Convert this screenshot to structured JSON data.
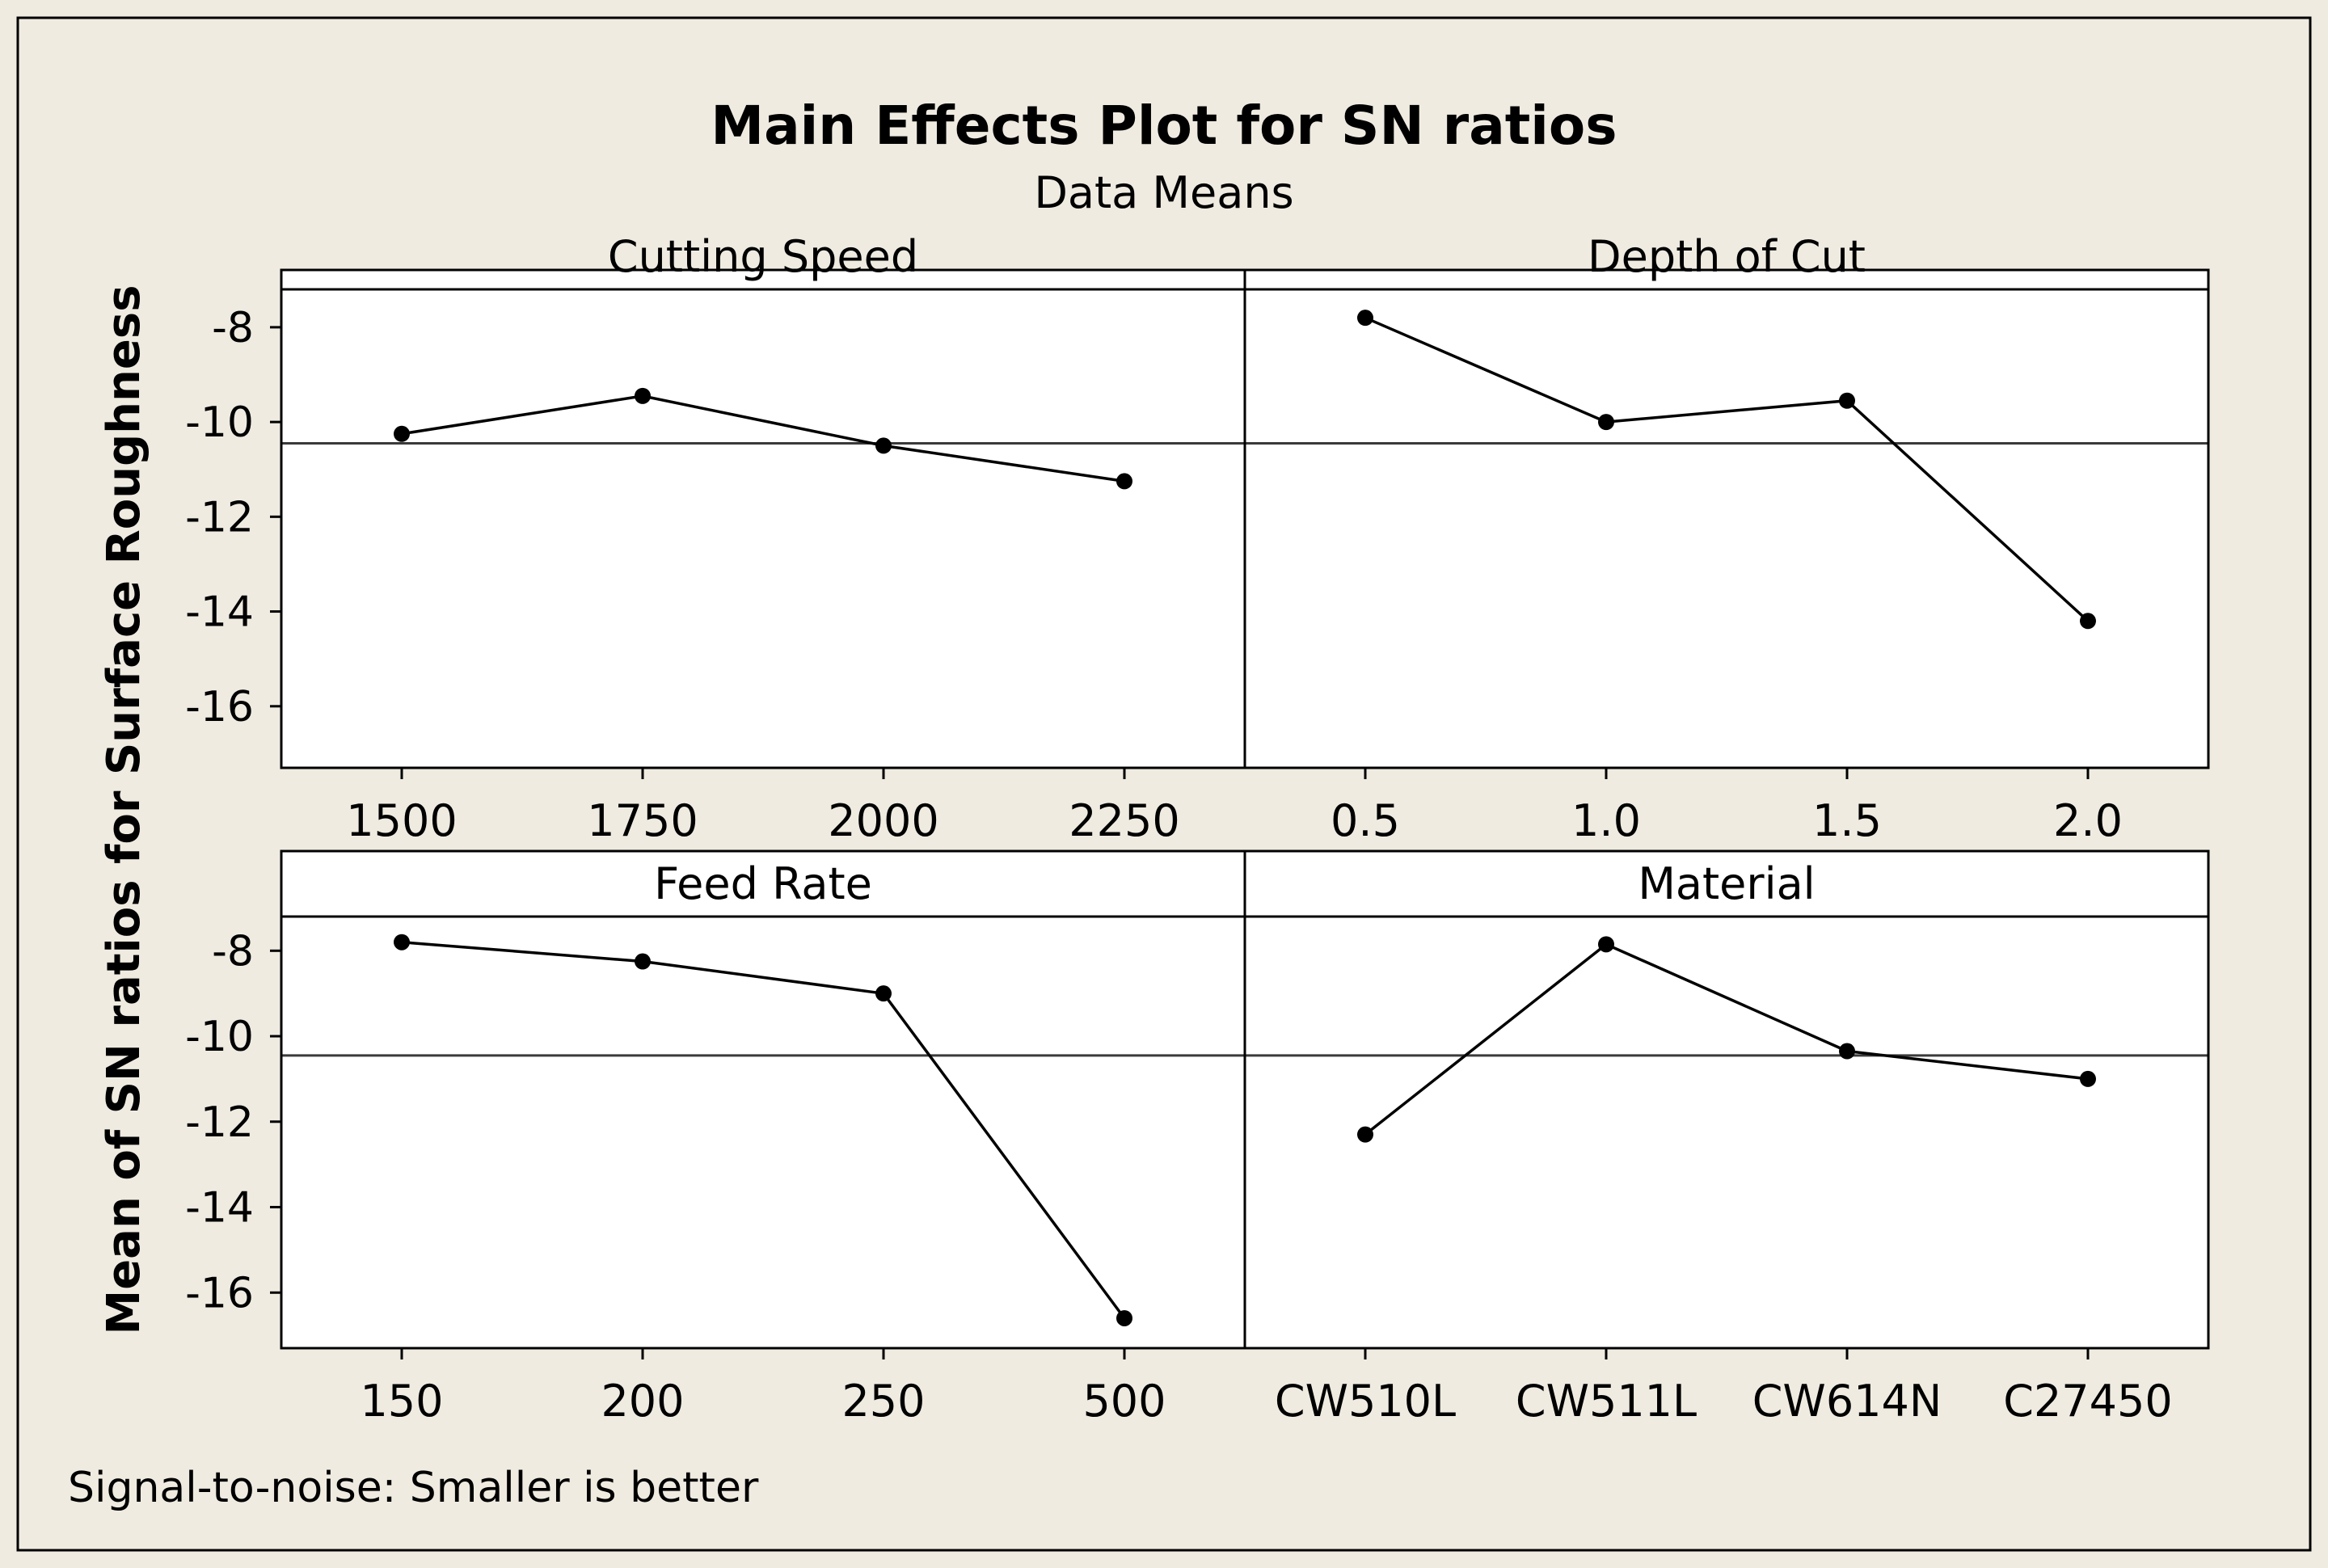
{
  "title": "Main Effects Plot for SN ratios",
  "subtitle": "Data Means",
  "footnote": "Signal-to-noise: Smaller is better",
  "colors": {
    "background": "#efebe1",
    "panel": "#ffffff",
    "line": "#000000",
    "reference": "#333333"
  },
  "chart_data": {
    "type": "line",
    "ylabel": "Mean of SN ratios for Surface Roughness",
    "ylim": [
      -17.3,
      -7.2
    ],
    "yticks": [
      -8,
      -10,
      -12,
      -14,
      -16
    ],
    "ytick_labels": [
      "-8",
      "-10",
      "-12",
      "-14",
      "-16"
    ],
    "grand_mean": -10.45,
    "panels": [
      {
        "name": "Cutting Speed",
        "categories": [
          "1500",
          "1750",
          "2000",
          "2250"
        ],
        "values": [
          -10.25,
          -9.45,
          -10.5,
          -11.25
        ]
      },
      {
        "name": "Depth of Cut",
        "categories": [
          "0.5",
          "1.0",
          "1.5",
          "2.0"
        ],
        "values": [
          -7.8,
          -10.0,
          -9.55,
          -14.2
        ]
      },
      {
        "name": "Feed Rate",
        "categories": [
          "150",
          "200",
          "250",
          "500"
        ],
        "values": [
          -7.8,
          -8.25,
          -9.0,
          -16.6
        ]
      },
      {
        "name": "Material",
        "categories": [
          "CW510L",
          "CW511L",
          "CW614N",
          "C27450"
        ],
        "values": [
          -12.3,
          -7.85,
          -10.35,
          -11.0
        ]
      }
    ]
  }
}
